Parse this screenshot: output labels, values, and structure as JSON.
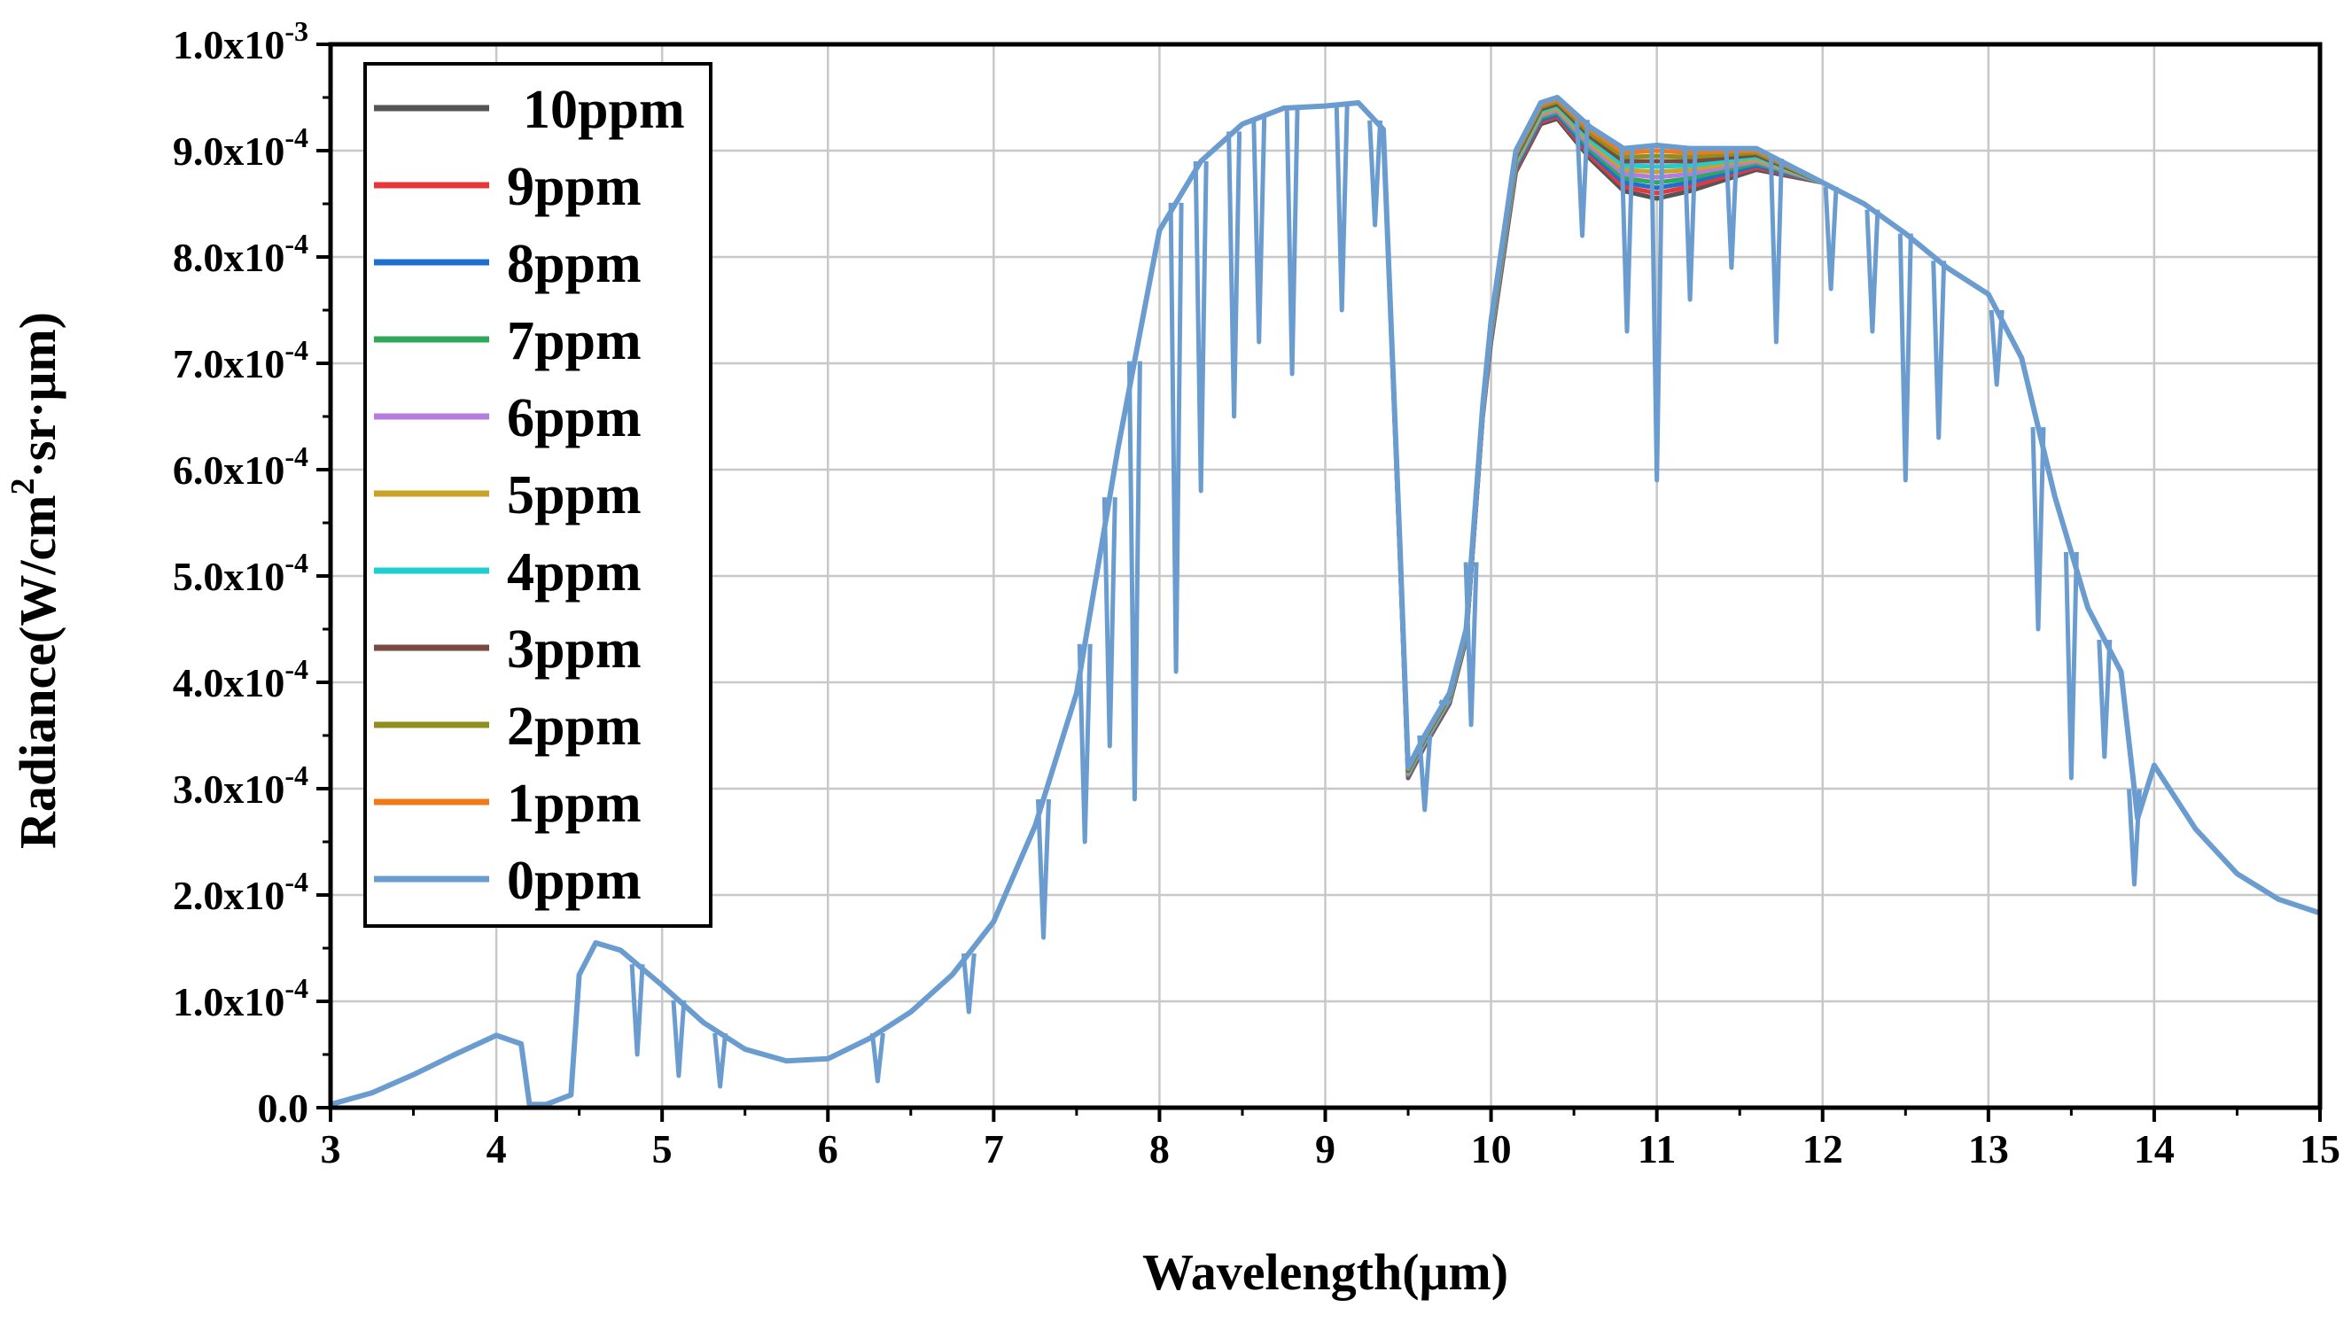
{
  "chart_data": {
    "type": "line",
    "title": "",
    "xlabel": "Wavelength(μm)",
    "ylabel": "Radiance(W/cm²·sr·μm)",
    "ylabel_parts": {
      "main": "Radiance(W/cm",
      "sup": "2",
      "tail": "·sr·μm)"
    },
    "xlim": [
      3,
      15
    ],
    "ylim": [
      0,
      0.001
    ],
    "x_ticks": [
      3,
      4,
      5,
      6,
      7,
      8,
      9,
      10,
      11,
      12,
      13,
      14,
      15
    ],
    "x_tick_labels": [
      "3",
      "4",
      "5",
      "6",
      "7",
      "8",
      "9",
      "10",
      "11",
      "12",
      "13",
      "14",
      "15"
    ],
    "y_ticks": [
      0,
      0.0001,
      0.0002,
      0.0003,
      0.0004,
      0.0005,
      0.0006,
      0.0007,
      0.0008,
      0.0009,
      0.001
    ],
    "y_tick_labels": [
      {
        "base": "0.0",
        "exp": ""
      },
      {
        "base": "1.0x10",
        "exp": "-4"
      },
      {
        "base": "2.0x10",
        "exp": "-4"
      },
      {
        "base": "3.0x10",
        "exp": "-4"
      },
      {
        "base": "4.0x10",
        "exp": "-4"
      },
      {
        "base": "5.0x10",
        "exp": "-4"
      },
      {
        "base": "6.0x10",
        "exp": "-4"
      },
      {
        "base": "7.0x10",
        "exp": "-4"
      },
      {
        "base": "8.0x10",
        "exp": "-4"
      },
      {
        "base": "9.0x10",
        "exp": "-4"
      },
      {
        "base": "1.0x10",
        "exp": "-3"
      }
    ],
    "grid": true,
    "legend_position": "top-left",
    "x": [
      3.0,
      3.25,
      3.5,
      3.75,
      4.0,
      4.15,
      4.2,
      4.3,
      4.45,
      4.5,
      4.6,
      4.75,
      5.0,
      5.25,
      5.5,
      5.75,
      6.0,
      6.25,
      6.5,
      6.75,
      7.0,
      7.25,
      7.5,
      7.75,
      8.0,
      8.25,
      8.5,
      8.75,
      9.0,
      9.2,
      9.35,
      9.45,
      9.5,
      9.6,
      9.75,
      9.85,
      9.95,
      10.0,
      10.15,
      10.3,
      10.4,
      10.6,
      10.8,
      11.0,
      11.2,
      11.4,
      11.6,
      11.8,
      12.0,
      12.25,
      12.5,
      12.75,
      13.0,
      13.2,
      13.4,
      13.6,
      13.8,
      13.9,
      14.0,
      14.25,
      14.5,
      14.75,
      15.0
    ],
    "series": [
      {
        "name": "10ppm",
        "color": "#555555",
        "values": [
          3e-06,
          1.4e-05,
          3.1e-05,
          5e-05,
          6.8e-05,
          6e-05,
          3e-06,
          3e-06,
          1.2e-05,
          0.000125,
          0.000155,
          0.000148,
          0.000115,
          8e-05,
          5.5e-05,
          4.4e-05,
          4.6e-05,
          6.5e-05,
          9e-05,
          0.000125,
          0.000175,
          0.000265,
          0.00039,
          0.00062,
          0.000825,
          0.00089,
          0.000925,
          0.00094,
          0.000942,
          0.000945,
          0.00092,
          0.00052,
          0.00031,
          0.00034,
          0.00038,
          0.00044,
          0.00065,
          0.00072,
          0.00088,
          0.000925,
          0.00093,
          0.000892,
          0.000862,
          0.000855,
          0.000862,
          0.000872,
          0.000882,
          0.000876,
          0.00087,
          0.00085,
          0.000822,
          0.00079,
          0.000765,
          0.000705,
          0.000575,
          0.00047,
          0.00041,
          0.000272,
          0.000322,
          0.000262,
          0.00022,
          0.000196,
          0.000183
        ]
      },
      {
        "name": "9ppm",
        "color": "#e8373a",
        "values": [
          3e-06,
          1.4e-05,
          3.1e-05,
          5e-05,
          6.8e-05,
          6e-05,
          3e-06,
          3e-06,
          1.2e-05,
          0.000125,
          0.000155,
          0.000148,
          0.000115,
          8e-05,
          5.5e-05,
          4.4e-05,
          4.6e-05,
          6.5e-05,
          9e-05,
          0.000125,
          0.000175,
          0.000265,
          0.00039,
          0.00062,
          0.000825,
          0.00089,
          0.000925,
          0.00094,
          0.000942,
          0.000945,
          0.00092,
          0.000521,
          0.000311,
          0.000341,
          0.000381,
          0.000441,
          0.000651,
          0.000722,
          0.000882,
          0.000927,
          0.000932,
          0.000895,
          0.000866,
          0.00086,
          0.000866,
          0.000875,
          0.000884,
          0.000877,
          0.00087,
          0.00085,
          0.000822,
          0.00079,
          0.000765,
          0.000705,
          0.000575,
          0.00047,
          0.00041,
          0.000272,
          0.000322,
          0.000262,
          0.00022,
          0.000196,
          0.000183
        ]
      },
      {
        "name": "8ppm",
        "color": "#1f6fcf",
        "values": [
          3e-06,
          1.4e-05,
          3.1e-05,
          5e-05,
          6.8e-05,
          6e-05,
          3e-06,
          3e-06,
          1.2e-05,
          0.000125,
          0.000155,
          0.000148,
          0.000115,
          8e-05,
          5.5e-05,
          4.4e-05,
          4.6e-05,
          6.5e-05,
          9e-05,
          0.000125,
          0.000175,
          0.000265,
          0.00039,
          0.00062,
          0.000825,
          0.00089,
          0.000925,
          0.00094,
          0.000942,
          0.000945,
          0.00092,
          0.000522,
          0.000312,
          0.000342,
          0.000382,
          0.000442,
          0.000652,
          0.000724,
          0.000884,
          0.000929,
          0.000934,
          0.000898,
          0.00087,
          0.000865,
          0.00087,
          0.000878,
          0.000886,
          0.000878,
          0.00087,
          0.00085,
          0.000822,
          0.00079,
          0.000765,
          0.000705,
          0.000575,
          0.00047,
          0.00041,
          0.000272,
          0.000322,
          0.000262,
          0.00022,
          0.000196,
          0.000183
        ]
      },
      {
        "name": "7ppm",
        "color": "#2fa85a",
        "values": [
          3e-06,
          1.4e-05,
          3.1e-05,
          5e-05,
          6.8e-05,
          6e-05,
          3e-06,
          3e-06,
          1.2e-05,
          0.000125,
          0.000155,
          0.000148,
          0.000115,
          8e-05,
          5.5e-05,
          4.4e-05,
          4.6e-05,
          6.5e-05,
          9e-05,
          0.000125,
          0.000175,
          0.000265,
          0.00039,
          0.00062,
          0.000825,
          0.00089,
          0.000925,
          0.00094,
          0.000942,
          0.000945,
          0.00092,
          0.000523,
          0.000313,
          0.000343,
          0.000383,
          0.000443,
          0.000653,
          0.000726,
          0.000886,
          0.000931,
          0.000936,
          0.000901,
          0.000874,
          0.00087,
          0.000874,
          0.000881,
          0.000888,
          0.000879,
          0.00087,
          0.00085,
          0.000822,
          0.00079,
          0.000765,
          0.000705,
          0.000575,
          0.00047,
          0.00041,
          0.000272,
          0.000322,
          0.000262,
          0.00022,
          0.000196,
          0.000183
        ]
      },
      {
        "name": "6ppm",
        "color": "#b77be0",
        "values": [
          3e-06,
          1.4e-05,
          3.1e-05,
          5e-05,
          6.8e-05,
          6e-05,
          3e-06,
          3e-06,
          1.2e-05,
          0.000125,
          0.000155,
          0.000148,
          0.000115,
          8e-05,
          5.5e-05,
          4.4e-05,
          4.6e-05,
          6.5e-05,
          9e-05,
          0.000125,
          0.000175,
          0.000265,
          0.00039,
          0.00062,
          0.000825,
          0.00089,
          0.000925,
          0.00094,
          0.000942,
          0.000945,
          0.00092,
          0.000524,
          0.000314,
          0.000344,
          0.000384,
          0.000444,
          0.000654,
          0.000728,
          0.000888,
          0.000933,
          0.000938,
          0.000904,
          0.000878,
          0.000875,
          0.000878,
          0.000884,
          0.00089,
          0.00088,
          0.00087,
          0.00085,
          0.000822,
          0.00079,
          0.000765,
          0.000705,
          0.000575,
          0.00047,
          0.00041,
          0.000272,
          0.000322,
          0.000262,
          0.00022,
          0.000196,
          0.000183
        ]
      },
      {
        "name": "5ppm",
        "color": "#c9a227",
        "values": [
          3e-06,
          1.4e-05,
          3.1e-05,
          5e-05,
          6.8e-05,
          6e-05,
          3e-06,
          3e-06,
          1.2e-05,
          0.000125,
          0.000155,
          0.000148,
          0.000115,
          8e-05,
          5.5e-05,
          4.4e-05,
          4.6e-05,
          6.5e-05,
          9e-05,
          0.000125,
          0.000175,
          0.000265,
          0.00039,
          0.00062,
          0.000825,
          0.00089,
          0.000925,
          0.00094,
          0.000942,
          0.000945,
          0.00092,
          0.000525,
          0.000315,
          0.000345,
          0.000385,
          0.000445,
          0.000655,
          0.00073,
          0.00089,
          0.000935,
          0.00094,
          0.000907,
          0.000882,
          0.00088,
          0.000882,
          0.000887,
          0.000892,
          0.000881,
          0.00087,
          0.00085,
          0.000822,
          0.00079,
          0.000765,
          0.000705,
          0.000575,
          0.00047,
          0.00041,
          0.000272,
          0.000322,
          0.000262,
          0.00022,
          0.000196,
          0.000183
        ]
      },
      {
        "name": "4ppm",
        "color": "#1fcfcf",
        "values": [
          3e-06,
          1.4e-05,
          3.1e-05,
          5e-05,
          6.8e-05,
          6e-05,
          3e-06,
          3e-06,
          1.2e-05,
          0.000125,
          0.000155,
          0.000148,
          0.000115,
          8e-05,
          5.5e-05,
          4.4e-05,
          4.6e-05,
          6.5e-05,
          9e-05,
          0.000125,
          0.000175,
          0.000265,
          0.00039,
          0.00062,
          0.000825,
          0.00089,
          0.000925,
          0.00094,
          0.000942,
          0.000945,
          0.00092,
          0.000526,
          0.000316,
          0.000346,
          0.000386,
          0.000446,
          0.000656,
          0.000732,
          0.000892,
          0.000937,
          0.000942,
          0.00091,
          0.000886,
          0.000885,
          0.000886,
          0.00089,
          0.000894,
          0.000882,
          0.00087,
          0.00085,
          0.000822,
          0.00079,
          0.000765,
          0.000705,
          0.000575,
          0.00047,
          0.00041,
          0.000272,
          0.000322,
          0.000262,
          0.00022,
          0.000196,
          0.000183
        ]
      },
      {
        "name": "3ppm",
        "color": "#7a4a42",
        "values": [
          3e-06,
          1.4e-05,
          3.1e-05,
          5e-05,
          6.8e-05,
          6e-05,
          3e-06,
          3e-06,
          1.2e-05,
          0.000125,
          0.000155,
          0.000148,
          0.000115,
          8e-05,
          5.5e-05,
          4.4e-05,
          4.6e-05,
          6.5e-05,
          9e-05,
          0.000125,
          0.000175,
          0.000265,
          0.00039,
          0.00062,
          0.000825,
          0.00089,
          0.000925,
          0.00094,
          0.000942,
          0.000945,
          0.00092,
          0.000527,
          0.000317,
          0.000347,
          0.000387,
          0.000447,
          0.000657,
          0.000734,
          0.000894,
          0.000939,
          0.000944,
          0.000913,
          0.00089,
          0.00089,
          0.00089,
          0.000893,
          0.000896,
          0.000883,
          0.00087,
          0.00085,
          0.000822,
          0.00079,
          0.000765,
          0.000705,
          0.000575,
          0.00047,
          0.00041,
          0.000272,
          0.000322,
          0.000262,
          0.00022,
          0.000196,
          0.000183
        ]
      },
      {
        "name": "2ppm",
        "color": "#8f8f1f",
        "values": [
          3e-06,
          1.4e-05,
          3.1e-05,
          5e-05,
          6.8e-05,
          6e-05,
          3e-06,
          3e-06,
          1.2e-05,
          0.000125,
          0.000155,
          0.000148,
          0.000115,
          8e-05,
          5.5e-05,
          4.4e-05,
          4.6e-05,
          6.5e-05,
          9e-05,
          0.000125,
          0.000175,
          0.000265,
          0.00039,
          0.00062,
          0.000825,
          0.00089,
          0.000925,
          0.00094,
          0.000942,
          0.000945,
          0.00092,
          0.000528,
          0.000318,
          0.000348,
          0.000388,
          0.000448,
          0.000658,
          0.000736,
          0.000896,
          0.000941,
          0.000946,
          0.000916,
          0.000894,
          0.000895,
          0.000894,
          0.000896,
          0.000898,
          0.000884,
          0.00087,
          0.00085,
          0.000822,
          0.00079,
          0.000765,
          0.000705,
          0.000575,
          0.00047,
          0.00041,
          0.000272,
          0.000322,
          0.000262,
          0.00022,
          0.000196,
          0.000183
        ]
      },
      {
        "name": "1ppm",
        "color": "#f07a1a",
        "values": [
          3e-06,
          1.4e-05,
          3.1e-05,
          5e-05,
          6.8e-05,
          6e-05,
          3e-06,
          3e-06,
          1.2e-05,
          0.000125,
          0.000155,
          0.000148,
          0.000115,
          8e-05,
          5.5e-05,
          4.4e-05,
          4.6e-05,
          6.5e-05,
          9e-05,
          0.000125,
          0.000175,
          0.000265,
          0.00039,
          0.00062,
          0.000825,
          0.00089,
          0.000925,
          0.00094,
          0.000942,
          0.000945,
          0.00092,
          0.000529,
          0.000319,
          0.000349,
          0.000389,
          0.000449,
          0.000659,
          0.000738,
          0.000898,
          0.000943,
          0.000948,
          0.000919,
          0.000898,
          0.0009,
          0.000898,
          0.000899,
          0.0009,
          0.000885,
          0.00087,
          0.00085,
          0.000822,
          0.00079,
          0.000765,
          0.000705,
          0.000575,
          0.00047,
          0.00041,
          0.000272,
          0.000322,
          0.000262,
          0.00022,
          0.000196,
          0.000183
        ]
      },
      {
        "name": "0ppm",
        "color": "#6a9ccf",
        "values": [
          3e-06,
          1.4e-05,
          3.1e-05,
          5e-05,
          6.8e-05,
          6e-05,
          3e-06,
          3e-06,
          1.2e-05,
          0.000125,
          0.000155,
          0.000148,
          0.000115,
          8e-05,
          5.5e-05,
          4.4e-05,
          4.6e-05,
          6.5e-05,
          9e-05,
          0.000125,
          0.000175,
          0.000265,
          0.00039,
          0.00062,
          0.000825,
          0.00089,
          0.000925,
          0.00094,
          0.000942,
          0.000945,
          0.00092,
          0.00053,
          0.00032,
          0.00035,
          0.00039,
          0.00045,
          0.00066,
          0.00074,
          0.0009,
          0.000945,
          0.00095,
          0.000922,
          0.000902,
          0.000905,
          0.000902,
          0.000902,
          0.000902,
          0.000886,
          0.00087,
          0.00085,
          0.000822,
          0.00079,
          0.000765,
          0.000705,
          0.000575,
          0.00047,
          0.00041,
          0.000272,
          0.000322,
          0.000262,
          0.00022,
          0.000196,
          0.000183
        ]
      }
    ],
    "absorption_dips": [
      {
        "x": 4.85,
        "y": 5e-05
      },
      {
        "x": 5.1,
        "y": 3e-05
      },
      {
        "x": 5.35,
        "y": 2e-05
      },
      {
        "x": 6.3,
        "y": 2.5e-05
      },
      {
        "x": 6.85,
        "y": 9e-05
      },
      {
        "x": 7.3,
        "y": 0.00016
      },
      {
        "x": 7.55,
        "y": 0.00025
      },
      {
        "x": 7.7,
        "y": 0.00034
      },
      {
        "x": 7.85,
        "y": 0.00029
      },
      {
        "x": 8.1,
        "y": 0.00041
      },
      {
        "x": 8.25,
        "y": 0.00058
      },
      {
        "x": 8.45,
        "y": 0.00065
      },
      {
        "x": 8.6,
        "y": 0.00072
      },
      {
        "x": 8.8,
        "y": 0.00069
      },
      {
        "x": 9.1,
        "y": 0.00075
      },
      {
        "x": 9.3,
        "y": 0.00083
      },
      {
        "x": 9.6,
        "y": 0.00028
      },
      {
        "x": 9.72,
        "y": 0.00038
      },
      {
        "x": 9.88,
        "y": 0.00036
      },
      {
        "x": 10.55,
        "y": 0.00082
      },
      {
        "x": 10.82,
        "y": 0.00073
      },
      {
        "x": 11.0,
        "y": 0.00059
      },
      {
        "x": 11.2,
        "y": 0.00076
      },
      {
        "x": 11.45,
        "y": 0.00079
      },
      {
        "x": 11.72,
        "y": 0.00072
      },
      {
        "x": 12.05,
        "y": 0.00077
      },
      {
        "x": 12.3,
        "y": 0.00073
      },
      {
        "x": 12.5,
        "y": 0.00059
      },
      {
        "x": 12.7,
        "y": 0.00063
      },
      {
        "x": 13.05,
        "y": 0.00068
      },
      {
        "x": 13.3,
        "y": 0.00045
      },
      {
        "x": 13.5,
        "y": 0.00031
      },
      {
        "x": 13.7,
        "y": 0.00033
      },
      {
        "x": 13.88,
        "y": 0.00021
      }
    ]
  },
  "legend": {
    "items": [
      {
        "label": "10ppm",
        "color": "#555555"
      },
      {
        "label": "9ppm",
        "color": "#e8373a"
      },
      {
        "label": "8ppm",
        "color": "#1f6fcf"
      },
      {
        "label": "7ppm",
        "color": "#2fa85a"
      },
      {
        "label": "6ppm",
        "color": "#b77be0"
      },
      {
        "label": "5ppm",
        "color": "#c9a227"
      },
      {
        "label": "4ppm",
        "color": "#1fcfcf"
      },
      {
        "label": "3ppm",
        "color": "#7a4a42"
      },
      {
        "label": "2ppm",
        "color": "#8f8f1f"
      },
      {
        "label": "1ppm",
        "color": "#f07a1a"
      },
      {
        "label": "0ppm",
        "color": "#6a9ccf"
      }
    ]
  }
}
